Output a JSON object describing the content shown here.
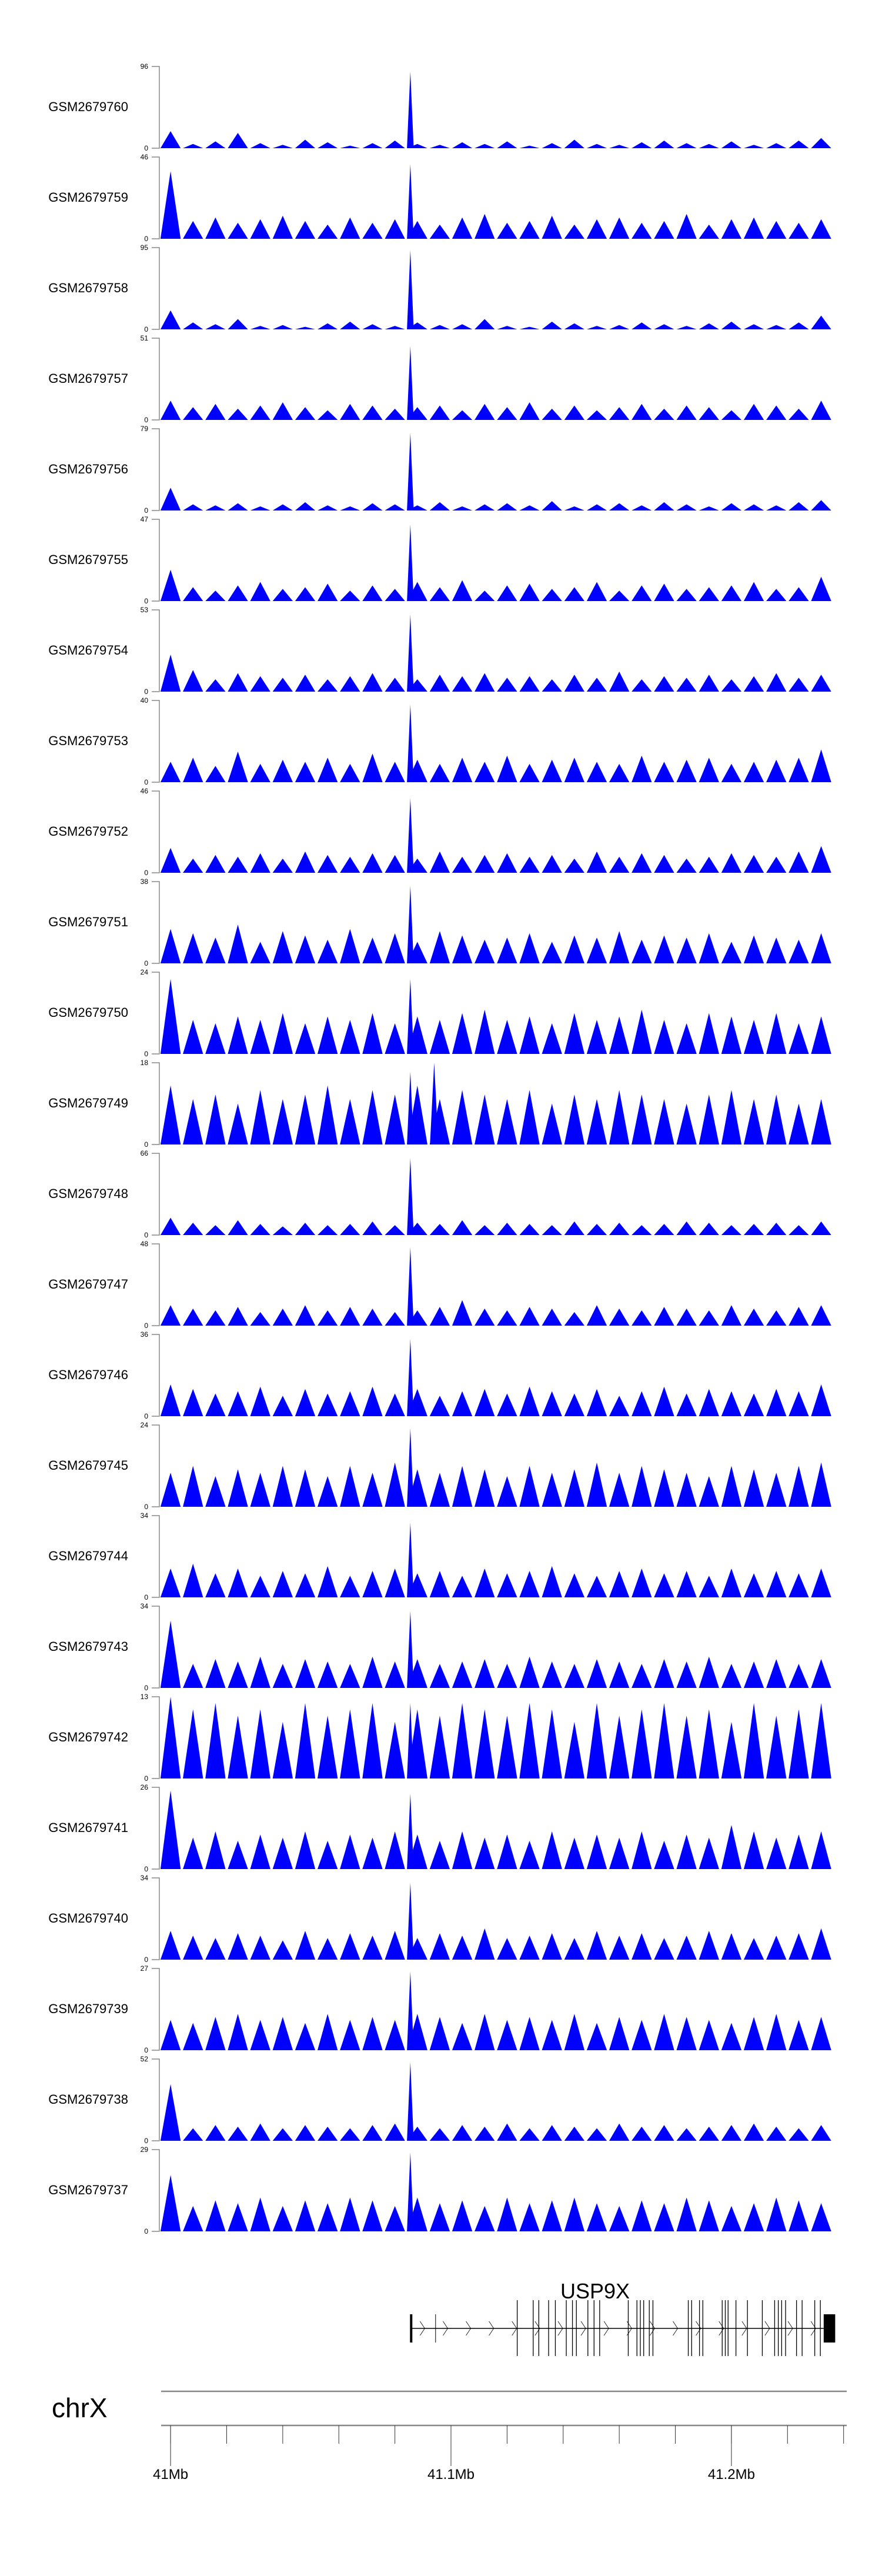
{
  "chart_data": {
    "type": "area",
    "title": "",
    "chromosome": "chrX",
    "xlabel": "",
    "xlim_mb": [
      40.996,
      41.2365
    ],
    "x_tick_labels": [
      "41Mb",
      "41.1Mb",
      "41.2Mb"
    ],
    "x_tick_label_values": [
      41.0,
      41.1,
      41.2
    ],
    "minor_tick_step_mb": 0.02,
    "fill_color": "#0000ff",
    "x": [
      41.0,
      41.008,
      41.016,
      41.024,
      41.032,
      41.04,
      41.048,
      41.056,
      41.064,
      41.072,
      41.08,
      41.088,
      41.096,
      41.104,
      41.112,
      41.12,
      41.128,
      41.136,
      41.144,
      41.152,
      41.16,
      41.168,
      41.176,
      41.184,
      41.192,
      41.2,
      41.208,
      41.216,
      41.224,
      41.232
    ],
    "peak_x": 41.0855,
    "series": [
      {
        "name": "GSM2679760",
        "ymax": 96,
        "peak": 90,
        "values": [
          20,
          5,
          8,
          18,
          6,
          4,
          10,
          7,
          3,
          6,
          9,
          5,
          4,
          7,
          5,
          8,
          3,
          6,
          10,
          5,
          4,
          7,
          9,
          6,
          5,
          8,
          4,
          6,
          9,
          12
        ]
      },
      {
        "name": "GSM2679759",
        "ymax": 46,
        "peak": 42,
        "values": [
          38,
          10,
          12,
          9,
          11,
          13,
          10,
          8,
          12,
          9,
          11,
          10,
          8,
          12,
          14,
          9,
          10,
          13,
          8,
          11,
          12,
          9,
          10,
          14,
          8,
          11,
          12,
          10,
          9,
          11
        ]
      },
      {
        "name": "GSM2679758",
        "ymax": 95,
        "peak": 92,
        "values": [
          22,
          8,
          6,
          12,
          4,
          5,
          3,
          7,
          9,
          6,
          4,
          8,
          5,
          6,
          12,
          4,
          3,
          9,
          7,
          4,
          5,
          8,
          6,
          4,
          7,
          9,
          6,
          5,
          8,
          16
        ]
      },
      {
        "name": "GSM2679757",
        "ymax": 51,
        "peak": 46,
        "values": [
          12,
          8,
          10,
          7,
          9,
          11,
          8,
          6,
          10,
          9,
          7,
          8,
          9,
          6,
          10,
          8,
          11,
          7,
          9,
          6,
          8,
          10,
          7,
          9,
          8,
          6,
          10,
          9,
          7,
          12
        ]
      },
      {
        "name": "GSM2679756",
        "ymax": 79,
        "peak": 75,
        "values": [
          22,
          6,
          5,
          7,
          4,
          6,
          8,
          5,
          4,
          7,
          6,
          5,
          8,
          4,
          6,
          7,
          5,
          9,
          4,
          6,
          7,
          5,
          8,
          6,
          4,
          7,
          6,
          5,
          8,
          10
        ]
      },
      {
        "name": "GSM2679755",
        "ymax": 47,
        "peak": 44,
        "values": [
          18,
          8,
          6,
          9,
          11,
          7,
          8,
          10,
          6,
          9,
          7,
          11,
          8,
          12,
          6,
          9,
          10,
          7,
          8,
          11,
          6,
          9,
          10,
          7,
          8,
          9,
          11,
          7,
          8,
          14
        ]
      },
      {
        "name": "GSM2679754",
        "ymax": 53,
        "peak": 50,
        "values": [
          24,
          14,
          8,
          12,
          10,
          9,
          11,
          8,
          10,
          12,
          9,
          8,
          11,
          10,
          12,
          9,
          10,
          8,
          11,
          9,
          13,
          8,
          10,
          9,
          11,
          8,
          10,
          12,
          9,
          11
        ]
      },
      {
        "name": "GSM2679753",
        "ymax": 40,
        "peak": 38,
        "values": [
          10,
          12,
          8,
          15,
          9,
          11,
          10,
          12,
          9,
          14,
          10,
          11,
          9,
          12,
          10,
          13,
          9,
          11,
          12,
          10,
          9,
          13,
          10,
          11,
          12,
          9,
          10,
          11,
          12,
          16
        ]
      },
      {
        "name": "GSM2679752",
        "ymax": 46,
        "peak": 42,
        "values": [
          14,
          8,
          10,
          9,
          11,
          8,
          12,
          10,
          9,
          11,
          10,
          8,
          12,
          9,
          10,
          11,
          9,
          10,
          8,
          12,
          9,
          11,
          10,
          8,
          9,
          11,
          10,
          9,
          12,
          15
        ]
      },
      {
        "name": "GSM2679751",
        "ymax": 38,
        "peak": 36,
        "values": [
          16,
          14,
          12,
          18,
          10,
          15,
          13,
          11,
          16,
          12,
          14,
          10,
          15,
          13,
          11,
          12,
          14,
          10,
          13,
          12,
          15,
          11,
          13,
          12,
          14,
          10,
          13,
          12,
          11,
          14
        ]
      },
      {
        "name": "GSM2679750",
        "ymax": 24,
        "peak": 22,
        "values": [
          22,
          10,
          9,
          11,
          10,
          12,
          9,
          11,
          10,
          12,
          9,
          11,
          10,
          12,
          13,
          10,
          11,
          9,
          12,
          10,
          11,
          13,
          10,
          9,
          12,
          11,
          10,
          12,
          9,
          11
        ]
      },
      {
        "name": "GSM2679749",
        "ymax": 18,
        "peak": 16,
        "secondary_peak": {
          "x": 41.094,
          "value": 18
        },
        "values": [
          13,
          10,
          11,
          9,
          12,
          10,
          11,
          13,
          10,
          12,
          11,
          13,
          10,
          12,
          11,
          10,
          12,
          9,
          11,
          10,
          12,
          11,
          10,
          9,
          11,
          12,
          10,
          11,
          9,
          10
        ]
      },
      {
        "name": "GSM2679748",
        "ymax": 66,
        "peak": 62,
        "values": [
          14,
          10,
          8,
          12,
          9,
          7,
          10,
          8,
          9,
          11,
          8,
          10,
          9,
          12,
          8,
          10,
          9,
          8,
          11,
          9,
          10,
          8,
          9,
          11,
          10,
          8,
          9,
          10,
          8,
          11
        ]
      },
      {
        "name": "GSM2679747",
        "ymax": 48,
        "peak": 46,
        "values": [
          12,
          10,
          9,
          11,
          8,
          10,
          12,
          9,
          11,
          10,
          8,
          9,
          11,
          15,
          10,
          9,
          11,
          10,
          8,
          12,
          10,
          9,
          11,
          10,
          9,
          12,
          10,
          9,
          11,
          12
        ]
      },
      {
        "name": "GSM2679746",
        "ymax": 36,
        "peak": 34,
        "values": [
          14,
          12,
          10,
          11,
          13,
          9,
          12,
          10,
          11,
          13,
          10,
          12,
          9,
          11,
          12,
          10,
          13,
          11,
          10,
          12,
          9,
          11,
          13,
          10,
          12,
          11,
          10,
          12,
          11,
          14
        ]
      },
      {
        "name": "GSM2679745",
        "ymax": 24,
        "peak": 23,
        "values": [
          10,
          12,
          9,
          11,
          10,
          12,
          11,
          9,
          12,
          10,
          13,
          11,
          10,
          12,
          11,
          9,
          12,
          10,
          11,
          13,
          10,
          12,
          11,
          10,
          9,
          12,
          11,
          10,
          12,
          13
        ]
      },
      {
        "name": "GSM2679744",
        "ymax": 34,
        "peak": 31,
        "values": [
          12,
          14,
          10,
          12,
          9,
          11,
          10,
          13,
          9,
          11,
          12,
          10,
          11,
          9,
          12,
          10,
          11,
          13,
          10,
          9,
          11,
          12,
          10,
          11,
          9,
          12,
          10,
          11,
          10,
          12
        ]
      },
      {
        "name": "GSM2679743",
        "ymax": 34,
        "peak": 32,
        "values": [
          28,
          10,
          12,
          11,
          13,
          10,
          12,
          11,
          10,
          13,
          11,
          12,
          10,
          11,
          12,
          10,
          13,
          11,
          10,
          12,
          11,
          10,
          12,
          11,
          13,
          10,
          11,
          12,
          10,
          12
        ]
      },
      {
        "name": "GSM2679742",
        "ymax": 13,
        "peak": 12,
        "values": [
          13,
          11,
          12,
          10,
          11,
          9,
          12,
          10,
          11,
          12,
          9,
          11,
          10,
          12,
          11,
          10,
          12,
          11,
          9,
          12,
          10,
          11,
          12,
          10,
          11,
          9,
          12,
          10,
          11,
          12
        ]
      },
      {
        "name": "GSM2679741",
        "ymax": 26,
        "peak": 24,
        "values": [
          25,
          10,
          12,
          9,
          11,
          10,
          12,
          9,
          11,
          10,
          12,
          11,
          9,
          12,
          10,
          11,
          9,
          12,
          10,
          11,
          10,
          12,
          9,
          11,
          10,
          14,
          12,
          10,
          11,
          12
        ]
      },
      {
        "name": "GSM2679740",
        "ymax": 34,
        "peak": 32,
        "values": [
          12,
          10,
          9,
          11,
          10,
          8,
          12,
          9,
          11,
          10,
          12,
          9,
          11,
          10,
          13,
          9,
          10,
          11,
          9,
          12,
          10,
          11,
          9,
          10,
          12,
          11,
          9,
          10,
          11,
          13
        ]
      },
      {
        "name": "GSM2679739",
        "ymax": 27,
        "peak": 26,
        "values": [
          10,
          9,
          11,
          12,
          10,
          11,
          9,
          12,
          10,
          11,
          10,
          12,
          11,
          9,
          12,
          10,
          11,
          10,
          12,
          9,
          11,
          10,
          12,
          11,
          10,
          9,
          11,
          12,
          10,
          11
        ]
      },
      {
        "name": "GSM2679738",
        "ymax": 52,
        "peak": 50,
        "values": [
          36,
          8,
          10,
          9,
          11,
          8,
          10,
          9,
          8,
          10,
          11,
          9,
          8,
          10,
          9,
          11,
          8,
          10,
          9,
          8,
          11,
          9,
          10,
          8,
          9,
          10,
          11,
          9,
          8,
          10
        ]
      },
      {
        "name": "GSM2679737",
        "ymax": 29,
        "peak": 28,
        "values": [
          20,
          9,
          11,
          10,
          12,
          9,
          11,
          10,
          12,
          11,
          9,
          12,
          10,
          11,
          9,
          12,
          10,
          11,
          12,
          10,
          9,
          11,
          10,
          12,
          11,
          9,
          10,
          12,
          11,
          10
        ]
      }
    ],
    "gene": {
      "name": "USP9X",
      "start_mb": 41.0858,
      "end_mb": 41.2329,
      "strand": "+",
      "utr_exons_mb": [
        41.0858,
        41.0945
      ],
      "exons_mb": [
        41.1236,
        41.1293,
        41.1313,
        41.1348,
        41.1372,
        41.1411,
        41.1433,
        41.1447,
        41.1488,
        41.151,
        41.153,
        41.1632,
        41.1663,
        41.1675,
        41.1687,
        41.1707,
        41.172,
        41.1846,
        41.1858,
        41.1886,
        41.1898,
        41.1967,
        41.1978,
        41.1988,
        41.2016,
        41.2057,
        41.211,
        41.2154,
        41.2167,
        41.2179,
        41.2193,
        41.2232,
        41.2252,
        41.2297,
        41.2317
      ],
      "last_exon_mb": [
        41.2329,
        41.237
      ]
    }
  }
}
